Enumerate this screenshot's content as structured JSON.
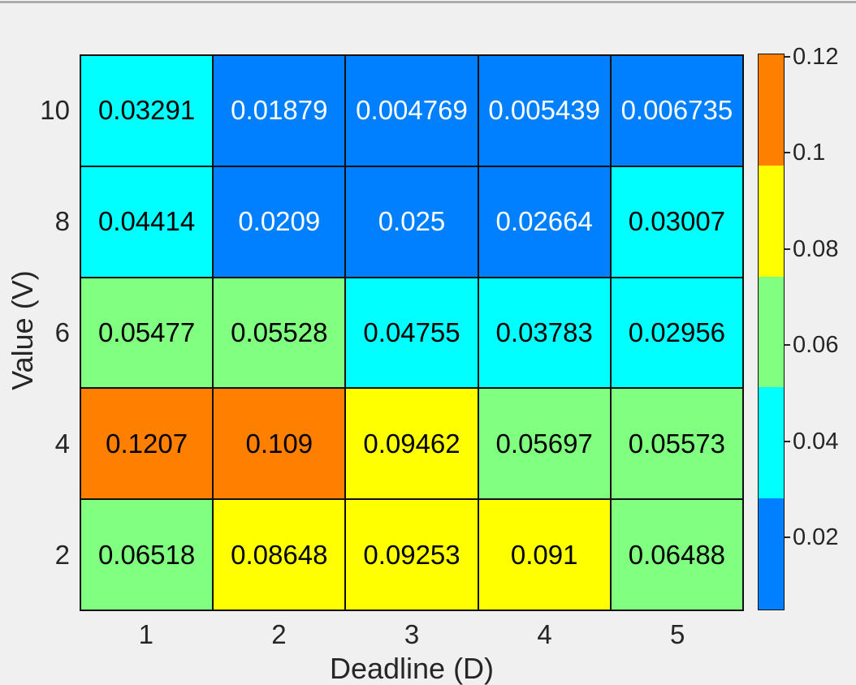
{
  "figure": {
    "background": "#F0F0F0",
    "top_edge_color": "#ABABAB",
    "axis_text_color": "#262626",
    "grid_line_color": "#0F0F0F"
  },
  "chart_data": {
    "type": "heatmap",
    "title": "",
    "xlabel": "Deadline (D)",
    "ylabel": "Value (V)",
    "x_categories": [
      "1",
      "2",
      "3",
      "4",
      "5"
    ],
    "y_categories": [
      "10",
      "8",
      "6",
      "4",
      "2"
    ],
    "values": [
      [
        0.03291,
        0.01879,
        0.004769,
        0.005439,
        0.006735
      ],
      [
        0.04414,
        0.0209,
        0.025,
        0.02664,
        0.03007
      ],
      [
        0.05477,
        0.05528,
        0.04755,
        0.03783,
        0.02956
      ],
      [
        0.1207,
        0.109,
        0.09462,
        0.05697,
        0.05573
      ],
      [
        0.06518,
        0.08648,
        0.09253,
        0.091,
        0.06488
      ]
    ],
    "cell_labels": [
      [
        "0.03291",
        "0.01879",
        "0.004769",
        "0.005439",
        "0.006735"
      ],
      [
        "0.04414",
        "0.0209",
        "0.025",
        "0.02664",
        "0.03007"
      ],
      [
        "0.05477",
        "0.05528",
        "0.04755",
        "0.03783",
        "0.02956"
      ],
      [
        "0.1207",
        "0.109",
        "0.09462",
        "0.05697",
        "0.05573"
      ],
      [
        "0.06518",
        "0.08648",
        "0.09253",
        "0.091",
        "0.06488"
      ]
    ],
    "vmin": 0.004769,
    "vmax": 0.1207,
    "n_levels": 5,
    "palette": [
      "#0080FF",
      "#00FFFF",
      "#80FF80",
      "#FFFF00",
      "#FF8000"
    ],
    "palette_names": [
      "blue",
      "cyan",
      "green",
      "yellow",
      "orange"
    ],
    "cell_text_dark": "#000000",
    "cell_text_light": "#FFFFFF",
    "grid": true,
    "legend_position": "none",
    "colorbar": {
      "position": "right",
      "tick_labels": [
        "0.02",
        "0.04",
        "0.06",
        "0.08",
        "0.1",
        "0.12"
      ],
      "tick_values": [
        0.02,
        0.04,
        0.06,
        0.08,
        0.1,
        0.12
      ]
    }
  }
}
